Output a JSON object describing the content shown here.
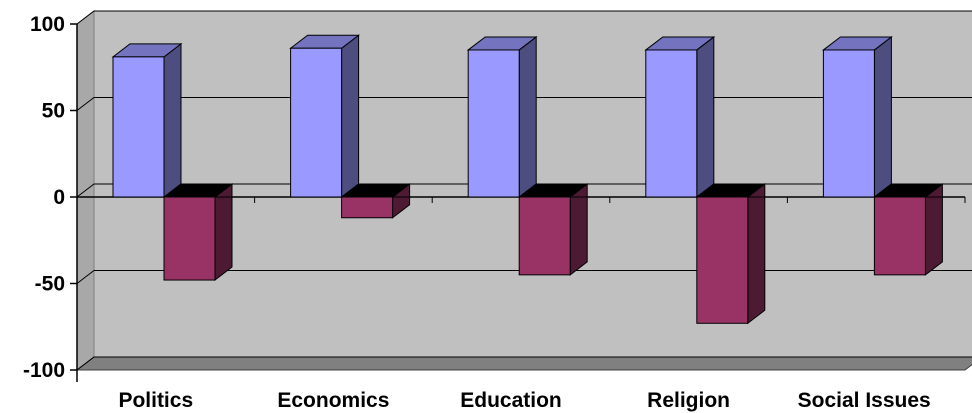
{
  "chart_data": {
    "type": "bar",
    "categories": [
      "Politics",
      "Economics",
      "Education",
      "Religion",
      "Social Issues"
    ],
    "series": [
      {
        "values": [
          81,
          86,
          85,
          85,
          85
        ]
      },
      {
        "values": [
          -48,
          -12,
          -45,
          -73,
          -45
        ]
      }
    ],
    "ylim": [
      -100,
      100
    ],
    "yticks": [
      "100",
      "50",
      "0",
      "-50",
      "-100"
    ],
    "grid": true,
    "legend": "none",
    "style": "3d-column",
    "colors": {
      "series_1_front": "#9999FF",
      "series_1_side": "#4D4D80",
      "series_1_top": "#7373BF",
      "series_2_front": "#993366",
      "series_2_side": "#4D1A33",
      "series_2_top": "#000000",
      "plot_wall": "#C0C0C0",
      "floor": "#808080",
      "gridline": "#000000"
    }
  }
}
